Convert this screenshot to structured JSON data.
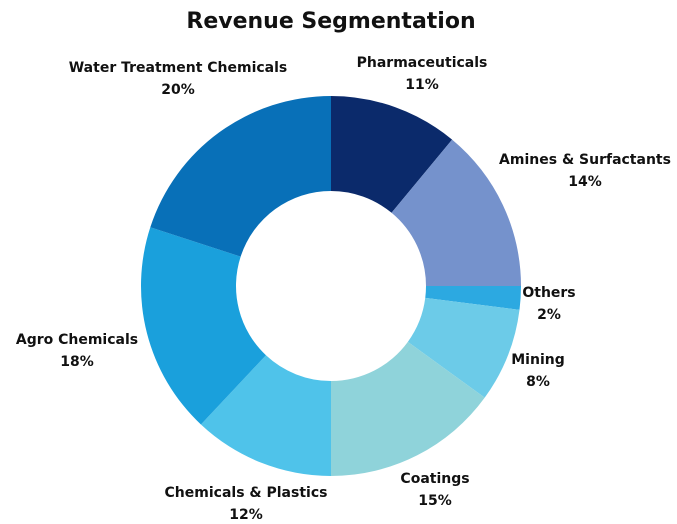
{
  "chart_data": {
    "type": "donut",
    "title": "Revenue Segmentation",
    "categories": [
      "Pharmaceuticals",
      "Amines & Surfactants",
      "Others",
      "Mining",
      "Coatings",
      "Chemicals & Plastics",
      "Agro Chemicals",
      "Water Treatment Chemicals"
    ],
    "values": [
      11,
      14,
      2,
      8,
      15,
      12,
      18,
      20
    ],
    "value_labels": [
      "11%",
      "14%",
      "2%",
      "8%",
      "15%",
      "12%",
      "18%",
      "20%"
    ],
    "colors": [
      "#0b2a6b",
      "#7592cc",
      "#2ca9e1",
      "#6ccbe8",
      "#8fd3da",
      "#4fc3ea",
      "#1aa0dc",
      "#0870b8"
    ]
  }
}
